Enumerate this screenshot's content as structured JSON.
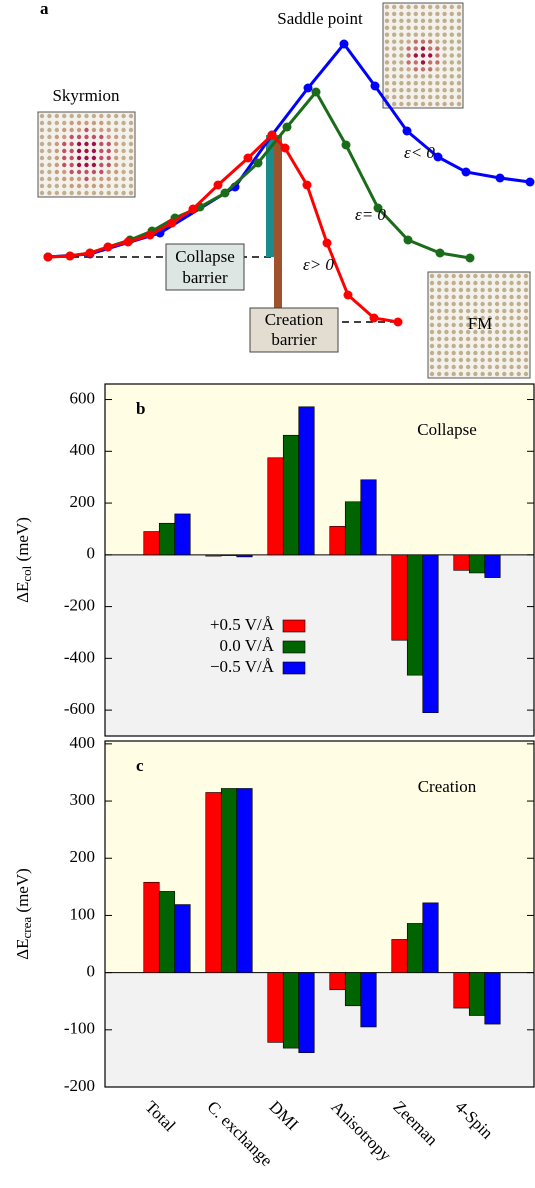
{
  "chart_data": [
    {
      "type": "line",
      "panel_label": "a",
      "series": [
        {
          "name": "ε> 0",
          "color": "#ff0000",
          "x": [
            0,
            2.2,
            4.2,
            6,
            8,
            10.2,
            12.4,
            14.5,
            17,
            20,
            22.4,
            23.7,
            25.9,
            27.9,
            30,
            32.6,
            35
          ],
          "values": [
            0,
            0.1,
            0.4,
            1,
            1.5,
            2.2,
            3.4,
            4.8,
            7.2,
            9.9,
            12.2,
            10.9,
            7.2,
            1.4,
            -3.8,
            -6.1,
            -6.5
          ]
        },
        {
          "name": "ε= 0",
          "color": "#1a6b1a",
          "x": [
            0,
            2.2,
            4.2,
            6,
            8.2,
            10.4,
            12.7,
            15.2,
            17.7,
            21,
            23.9,
            26.8,
            29.8,
            33,
            36,
            39.2,
            42.2
          ],
          "values": [
            0,
            0.1,
            0.4,
            1,
            1.7,
            2.6,
            3.9,
            5,
            6.4,
            9.4,
            13,
            16.5,
            11.2,
            4.9,
            1.7,
            0.4,
            -0.1
          ]
        },
        {
          "name": "ε< 0",
          "color": "#0000ff",
          "x": [
            0,
            4.2,
            11.2,
            18.7,
            22.4,
            26,
            29.6,
            32.7,
            35.9,
            39,
            41.8,
            45.2,
            48.2
          ],
          "values": [
            0,
            0.3,
            2.4,
            7,
            12.2,
            16.9,
            21.3,
            17.1,
            12.6,
            10,
            8.5,
            7.9,
            7.5
          ]
        }
      ],
      "annotations": {
        "skyrmion": "Skyrmion",
        "saddle": "Saddle point",
        "fm": "FM",
        "collapse": [
          "Collapse",
          "barrier"
        ],
        "creation": [
          "Creation",
          "barrier"
        ]
      }
    },
    {
      "type": "bar",
      "panel_label": "b",
      "annotation": "Collapse",
      "ylabel": [
        "ΔE",
        "col",
        " (meV)"
      ],
      "categories": [
        "Total",
        "C. exchange",
        "DMI",
        "Anisotropy",
        "Zeeman",
        "4-Spin"
      ],
      "series": [
        {
          "name": "+0.5 V/Å",
          "color": "#ff0000",
          "values": [
            90,
            -5,
            375,
            110,
            -330,
            -60
          ]
        },
        {
          "name": "0.0 V/Å",
          "color": "#006400",
          "values": [
            122,
            -3,
            462,
            205,
            -465,
            -70
          ]
        },
        {
          "name": "−0.5 V/Å",
          "color": "#0000ff",
          "values": [
            158,
            -8,
            572,
            290,
            -610,
            -88
          ]
        }
      ],
      "ylim": [
        -700,
        660
      ],
      "yticks": [
        -600,
        -400,
        -200,
        0,
        200,
        400,
        600
      ]
    },
    {
      "type": "bar",
      "panel_label": "c",
      "annotation": "Creation",
      "ylabel": [
        "ΔE",
        "crea",
        " (meV)"
      ],
      "series": [
        {
          "color": "#ff0000",
          "values": [
            158,
            315,
            -122,
            -30,
            58,
            -62
          ]
        },
        {
          "color": "#006400",
          "values": [
            142,
            322,
            -132,
            -58,
            86,
            -75
          ]
        },
        {
          "color": "#0000ff",
          "values": [
            119,
            322,
            -140,
            -95,
            122,
            -90
          ]
        }
      ],
      "ylim": [
        -200,
        405
      ],
      "yticks": [
        -200,
        -100,
        0,
        100,
        200,
        300,
        400
      ]
    }
  ]
}
